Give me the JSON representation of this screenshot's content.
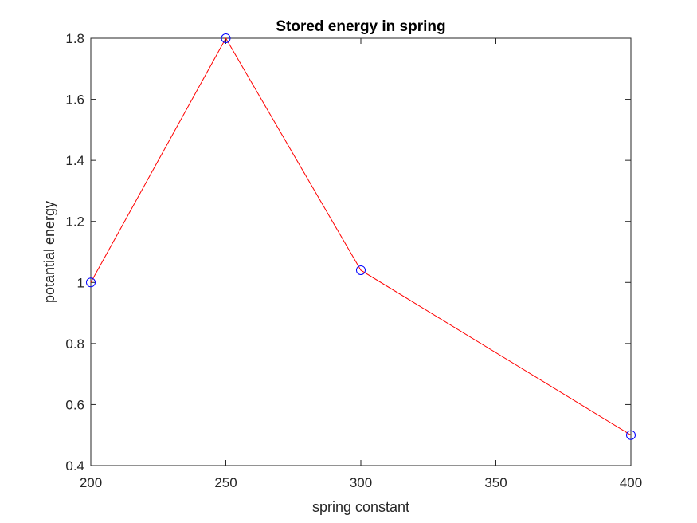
{
  "chart_data": {
    "type": "line",
    "title": "Stored energy in spring",
    "xlabel": "spring constant",
    "ylabel": "potantial energy",
    "x": [
      200,
      250,
      300,
      400
    ],
    "series": [
      {
        "values": [
          1.0,
          1.8,
          1.04,
          0.5
        ]
      }
    ],
    "xlim": [
      200,
      400
    ],
    "ylim": [
      0.4,
      1.8
    ],
    "xticks": [
      200,
      250,
      300,
      350,
      400
    ],
    "yticks": [
      0.4,
      0.6,
      0.8,
      1,
      1.2,
      1.4,
      1.6,
      1.8
    ],
    "xtick_labels": [
      "200",
      "250",
      "300",
      "350",
      "400"
    ],
    "ytick_labels": [
      "0.4",
      "0.6",
      "0.8",
      "1",
      "1.2",
      "1.4",
      "1.6",
      "1.8"
    ],
    "grid": false,
    "line_color": "#ff0000",
    "marker": "circle",
    "marker_color": "#0000ff",
    "axis_color": "#262626"
  }
}
